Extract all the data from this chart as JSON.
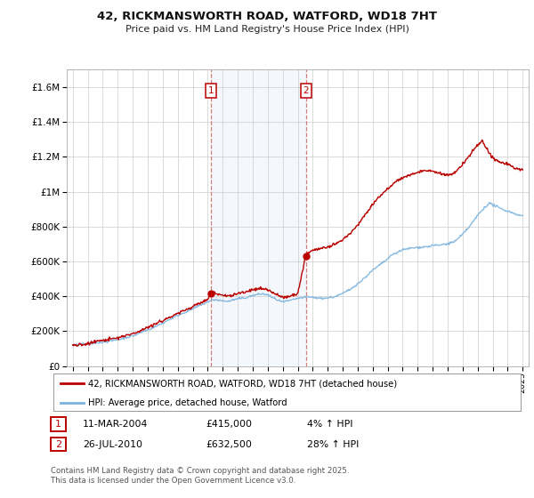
{
  "title": "42, RICKMANSWORTH ROAD, WATFORD, WD18 7HT",
  "subtitle": "Price paid vs. HM Land Registry's House Price Index (HPI)",
  "ylim": [
    0,
    1700000
  ],
  "yticks": [
    0,
    200000,
    400000,
    600000,
    800000,
    1000000,
    1200000,
    1400000,
    1600000
  ],
  "ytick_labels": [
    "£0",
    "£200K",
    "£400K",
    "£600K",
    "£800K",
    "£1M",
    "£1.2M",
    "£1.4M",
    "£1.6M"
  ],
  "hpi_color": "#7ab3de",
  "price_color": "#bb0000",
  "sale1_year": 2004.21,
  "sale1_price": 415000,
  "sale2_year": 2010.56,
  "sale2_price": 632500,
  "legend_line1": "42, RICKMANSWORTH ROAD, WATFORD, WD18 7HT (detached house)",
  "legend_line2": "HPI: Average price, detached house, Watford",
  "footer1": "Contains HM Land Registry data © Crown copyright and database right 2025.",
  "footer2": "This data is licensed under the Open Government Licence v3.0.",
  "background_color": "#ffffff",
  "grid_color": "#cccccc",
  "span_color": "#ddeeff",
  "vline_color": "#cc6666"
}
